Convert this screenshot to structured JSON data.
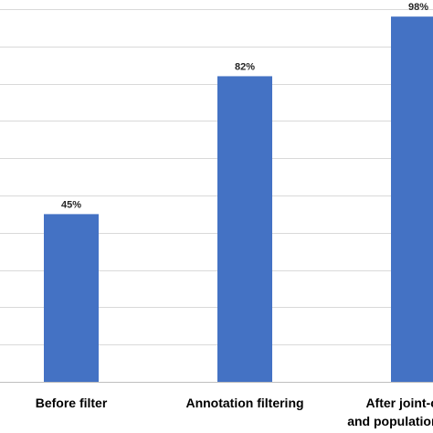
{
  "chart_data": {
    "type": "bar",
    "categories": [
      [
        "Before filter"
      ],
      [
        "Annotation filtering"
      ],
      [
        "After joint-calling",
        "and population filtering"
      ]
    ],
    "values": [
      45,
      82,
      98
    ],
    "data_labels": [
      "45%",
      "82%",
      "98%"
    ],
    "ylim": [
      0,
      100
    ],
    "y_gridlines": [
      0,
      10,
      20,
      30,
      40,
      50,
      60,
      70,
      80,
      90,
      100
    ],
    "grid": true,
    "legend": "none",
    "bar_color": "#4472c4"
  }
}
